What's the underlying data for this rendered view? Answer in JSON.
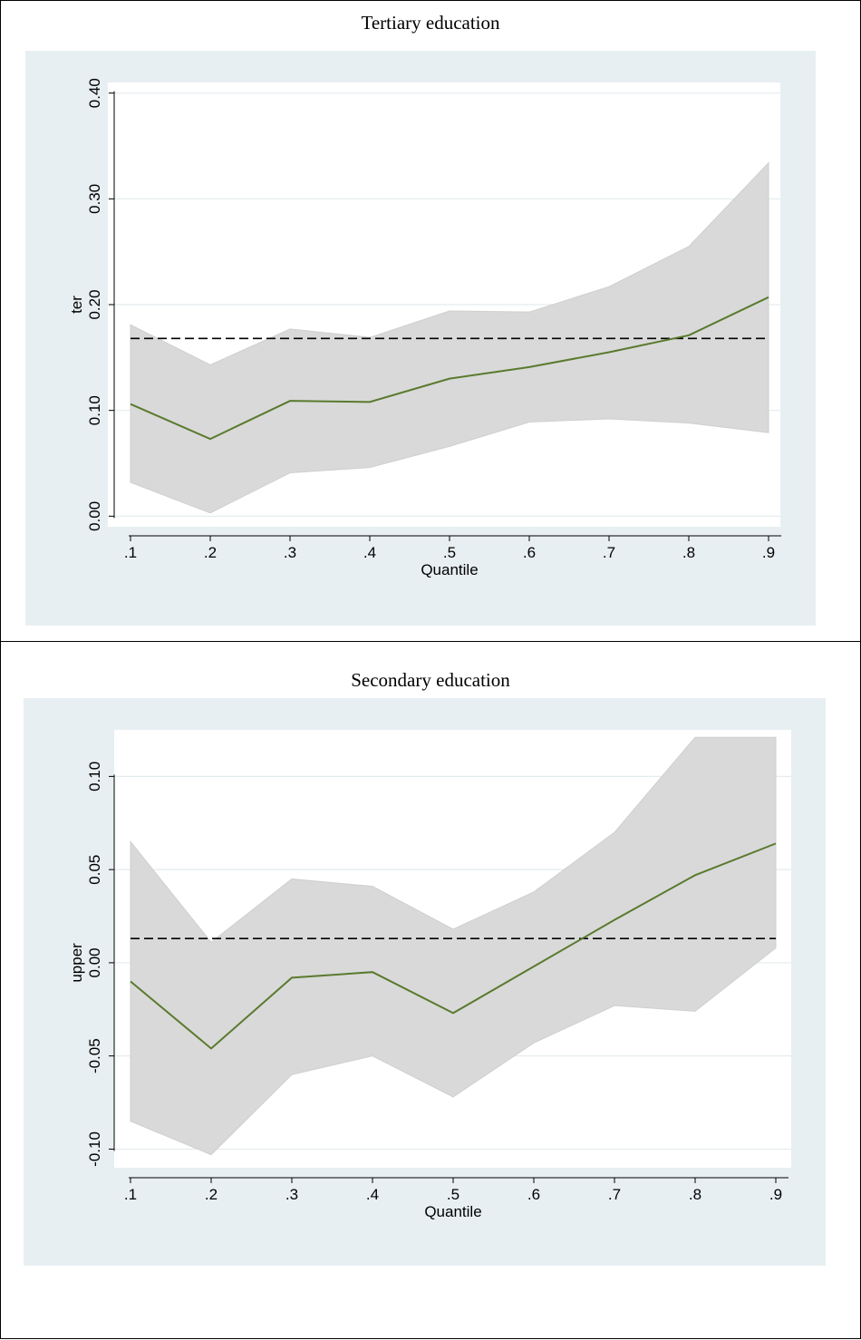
{
  "chart_data": [
    {
      "type": "line",
      "title": "Tertiary education",
      "xlabel": "Quantile",
      "ylabel": "ter",
      "x": [
        0.1,
        0.2,
        0.3,
        0.4,
        0.5,
        0.6,
        0.7,
        0.8,
        0.9
      ],
      "x_tick_labels": [
        ".1",
        ".2",
        ".3",
        ".4",
        ".5",
        ".6",
        ".7",
        ".8",
        ".9"
      ],
      "y_ticks": [
        0.0,
        0.1,
        0.2,
        0.3,
        0.4
      ],
      "y_tick_labels": [
        "0.00",
        "0.10",
        "0.20",
        "0.30",
        "0.40"
      ],
      "ylim": [
        -0.01,
        0.41
      ],
      "grid": true,
      "series": [
        {
          "kind": "line",
          "color": "#5a7a2e",
          "values": [
            0.106,
            0.073,
            0.109,
            0.108,
            0.13,
            0.141,
            0.155,
            0.171,
            0.207
          ]
        },
        {
          "kind": "band",
          "color": "#d9d9d9",
          "lower": [
            0.032,
            0.003,
            0.041,
            0.046,
            0.066,
            0.089,
            0.092,
            0.088,
            0.079
          ],
          "upper": [
            0.181,
            0.143,
            0.177,
            0.169,
            0.194,
            0.193,
            0.217,
            0.255,
            0.334
          ]
        },
        {
          "kind": "hline",
          "style": "dashed",
          "color": "#000000",
          "value": 0.168
        }
      ]
    },
    {
      "type": "line",
      "title": "Secondary education",
      "xlabel": "Quantile",
      "ylabel": "upper",
      "x": [
        0.1,
        0.2,
        0.3,
        0.4,
        0.5,
        0.6,
        0.7,
        0.8,
        0.9
      ],
      "x_tick_labels": [
        ".1",
        ".2",
        ".3",
        ".4",
        ".5",
        ".6",
        ".7",
        ".8",
        ".9"
      ],
      "y_ticks": [
        -0.1,
        -0.05,
        0.0,
        0.05,
        0.1
      ],
      "y_tick_labels": [
        "-0.10",
        "-0.05",
        "0.00",
        "0.05",
        "0.10"
      ],
      "ylim": [
        -0.11,
        0.125
      ],
      "grid": true,
      "series": [
        {
          "kind": "line",
          "color": "#5a7a2e",
          "values": [
            -0.01,
            -0.046,
            -0.008,
            -0.005,
            -0.027,
            -0.002,
            0.023,
            0.047,
            0.064
          ]
        },
        {
          "kind": "band",
          "color": "#d9d9d9",
          "lower": [
            -0.085,
            -0.103,
            -0.06,
            -0.05,
            -0.072,
            -0.043,
            -0.023,
            -0.026,
            0.008
          ],
          "upper": [
            0.065,
            0.011,
            0.045,
            0.041,
            0.018,
            0.038,
            0.07,
            0.121,
            0.121
          ]
        },
        {
          "kind": "hline",
          "style": "dashed",
          "color": "#000000",
          "value": 0.013
        }
      ]
    }
  ]
}
